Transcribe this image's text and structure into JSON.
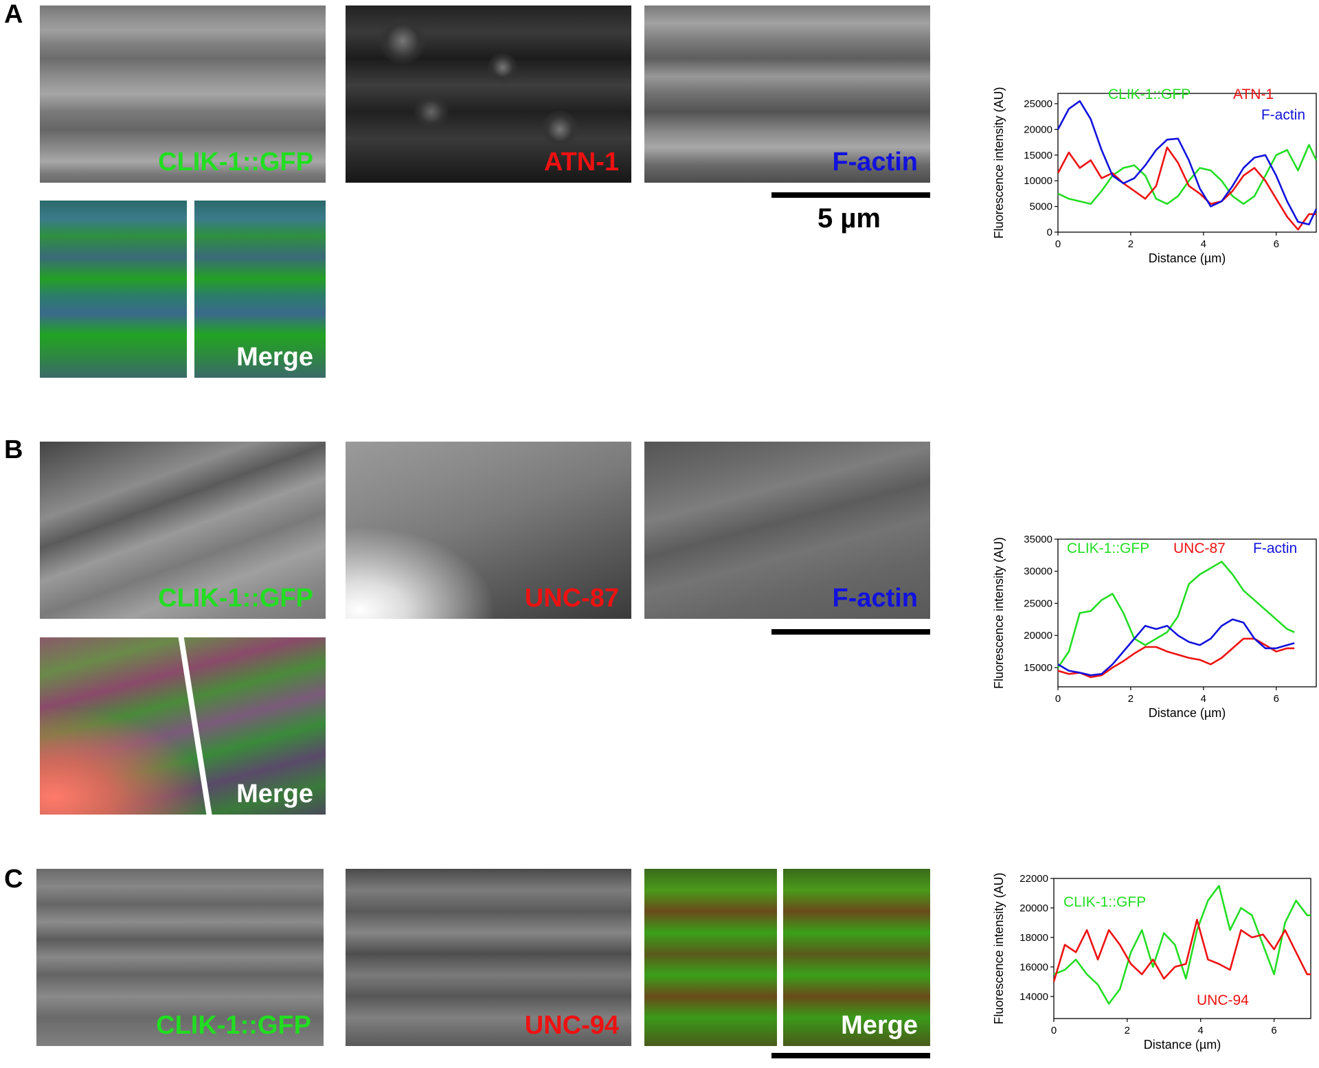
{
  "panels": [
    {
      "letter": "A",
      "tiles": [
        {
          "label": "CLIK-1::GFP",
          "color": "#22dd22"
        },
        {
          "label": "ATN-1",
          "color": "#ee1111"
        },
        {
          "label": "F-actin",
          "color": "#1111dd"
        }
      ],
      "merge_label": "Merge",
      "scale_label": "5 µm"
    },
    {
      "letter": "B",
      "tiles": [
        {
          "label": "CLIK-1::GFP",
          "color": "#22dd22"
        },
        {
          "label": "UNC-87",
          "color": "#ee1111"
        },
        {
          "label": "F-actin",
          "color": "#1111dd"
        }
      ],
      "merge_label": "Merge"
    },
    {
      "letter": "C",
      "tiles": [
        {
          "label": "CLIK-1::GFP",
          "color": "#22dd22"
        },
        {
          "label": "UNC-94",
          "color": "#ee1111"
        }
      ],
      "merge_label": "Merge"
    }
  ],
  "chart_data": [
    {
      "type": "line",
      "xlabel": "Distance (µm)",
      "ylabel": "Fluorescence intensity (AU)",
      "xlim": [
        0,
        7.1
      ],
      "ylim": [
        0,
        27000
      ],
      "xticks": [
        0,
        2,
        4,
        6
      ],
      "yticks": [
        0,
        5000,
        10000,
        15000,
        20000,
        25000
      ],
      "grid": false,
      "series": [
        {
          "name": "CLIK-1::GFP",
          "color": "#22dd22",
          "x": [
            0,
            0.3,
            0.6,
            0.9,
            1.2,
            1.5,
            1.8,
            2.1,
            2.4,
            2.7,
            3.0,
            3.3,
            3.6,
            3.9,
            4.2,
            4.5,
            4.8,
            5.1,
            5.4,
            5.7,
            6.0,
            6.3,
            6.6,
            6.9,
            7.1
          ],
          "y": [
            7500,
            6500,
            6000,
            5500,
            8000,
            11000,
            12500,
            13000,
            11000,
            6500,
            5500,
            7000,
            10000,
            12500,
            12000,
            10000,
            7000,
            5500,
            7000,
            11000,
            15000,
            16000,
            12000,
            17000,
            14000
          ]
        },
        {
          "name": "ATN-1",
          "color": "#ee1111",
          "x": [
            0,
            0.3,
            0.6,
            0.9,
            1.2,
            1.5,
            1.8,
            2.1,
            2.4,
            2.7,
            3.0,
            3.3,
            3.6,
            3.9,
            4.2,
            4.5,
            4.8,
            5.1,
            5.4,
            5.7,
            6.0,
            6.3,
            6.6,
            6.9,
            7.1
          ],
          "y": [
            11500,
            15500,
            12500,
            14000,
            10500,
            11500,
            9500,
            8000,
            6500,
            9000,
            16500,
            13500,
            9000,
            7500,
            5500,
            6000,
            8000,
            11000,
            12500,
            10000,
            6500,
            3000,
            500,
            3500,
            3500
          ]
        },
        {
          "name": "F-actin",
          "color": "#1111dd",
          "x": [
            0,
            0.3,
            0.6,
            0.9,
            1.2,
            1.5,
            1.8,
            2.1,
            2.4,
            2.7,
            3.0,
            3.3,
            3.6,
            3.9,
            4.2,
            4.5,
            4.8,
            5.1,
            5.4,
            5.7,
            6.0,
            6.3,
            6.6,
            6.9,
            7.1
          ],
          "y": [
            20000,
            24000,
            25500,
            22000,
            16000,
            11000,
            9500,
            10500,
            13000,
            16000,
            18000,
            18200,
            14000,
            8500,
            5000,
            6000,
            9000,
            12500,
            14500,
            15000,
            11000,
            6000,
            2000,
            1500,
            4500
          ]
        }
      ]
    },
    {
      "type": "line",
      "xlabel": "Distance (µm)",
      "ylabel": "Fluorescence intensity (AU)",
      "xlim": [
        0,
        7.1
      ],
      "ylim": [
        12000,
        35000
      ],
      "xticks": [
        0,
        2,
        4,
        6
      ],
      "yticks": [
        15000,
        20000,
        25000,
        30000,
        35000
      ],
      "grid": false,
      "series": [
        {
          "name": "CLIK-1::GFP",
          "color": "#22dd22",
          "x": [
            0,
            0.3,
            0.6,
            0.9,
            1.2,
            1.5,
            1.8,
            2.1,
            2.4,
            2.7,
            3.0,
            3.3,
            3.6,
            3.9,
            4.2,
            4.5,
            4.8,
            5.1,
            5.4,
            5.7,
            6.0,
            6.3,
            6.5
          ],
          "y": [
            15000,
            17500,
            23500,
            23800,
            25500,
            26500,
            23500,
            19500,
            18500,
            19500,
            20500,
            23000,
            28000,
            29500,
            30500,
            31500,
            29500,
            27000,
            25500,
            24000,
            22500,
            21000,
            20500
          ]
        },
        {
          "name": "UNC-87",
          "color": "#ee1111",
          "x": [
            0,
            0.3,
            0.6,
            0.9,
            1.2,
            1.5,
            1.8,
            2.1,
            2.4,
            2.7,
            3.0,
            3.3,
            3.6,
            3.9,
            4.2,
            4.5,
            4.8,
            5.1,
            5.4,
            5.7,
            6.0,
            6.3,
            6.5
          ],
          "y": [
            14500,
            14000,
            14200,
            13500,
            13800,
            15000,
            16000,
            17200,
            18200,
            18200,
            17500,
            17000,
            16500,
            16200,
            15500,
            16500,
            18000,
            19500,
            19500,
            18500,
            17500,
            18000,
            18000
          ]
        },
        {
          "name": "F-actin",
          "color": "#1111dd",
          "x": [
            0,
            0.3,
            0.6,
            0.9,
            1.2,
            1.5,
            1.8,
            2.1,
            2.4,
            2.7,
            3.0,
            3.3,
            3.6,
            3.9,
            4.2,
            4.5,
            4.8,
            5.1,
            5.4,
            5.7,
            6.0,
            6.3,
            6.5
          ],
          "y": [
            15500,
            14500,
            14200,
            13800,
            14000,
            15500,
            17500,
            19500,
            21500,
            21000,
            21500,
            20000,
            19000,
            18500,
            19500,
            21500,
            22500,
            22000,
            19500,
            18000,
            18000,
            18500,
            18800
          ]
        }
      ]
    },
    {
      "type": "line",
      "xlabel": "Distance (µm)",
      "ylabel": "Fluorescence intensity (AU)",
      "xlim": [
        0,
        7.0
      ],
      "ylim": [
        12500,
        22000
      ],
      "xticks": [
        0,
        2,
        4,
        6
      ],
      "yticks": [
        14000,
        16000,
        18000,
        20000,
        22000
      ],
      "grid": false,
      "series": [
        {
          "name": "CLIK-1::GFP",
          "color": "#22dd22",
          "x": [
            0,
            0.3,
            0.6,
            0.9,
            1.2,
            1.5,
            1.8,
            2.1,
            2.4,
            2.7,
            3.0,
            3.3,
            3.6,
            3.9,
            4.2,
            4.5,
            4.8,
            5.1,
            5.4,
            5.7,
            6.0,
            6.3,
            6.6,
            6.9,
            7.0
          ],
          "y": [
            15500,
            15800,
            16500,
            15500,
            14800,
            13500,
            14500,
            17000,
            18500,
            16000,
            18300,
            17500,
            15200,
            18500,
            20500,
            21500,
            18500,
            20000,
            19500,
            17500,
            15500,
            19000,
            20500,
            19500,
            19500
          ]
        },
        {
          "name": "UNC-94",
          "color": "#ee1111",
          "x": [
            0,
            0.3,
            0.6,
            0.9,
            1.2,
            1.5,
            1.8,
            2.1,
            2.4,
            2.7,
            3.0,
            3.3,
            3.6,
            3.9,
            4.2,
            4.5,
            4.8,
            5.1,
            5.4,
            5.7,
            6.0,
            6.3,
            6.6,
            6.9,
            7.0
          ],
          "y": [
            15000,
            17500,
            17000,
            18500,
            16500,
            18500,
            17500,
            16200,
            15500,
            16500,
            15200,
            16000,
            16200,
            19200,
            16500,
            16200,
            15800,
            18500,
            18000,
            18200,
            17200,
            18500,
            17000,
            15500,
            15500
          ]
        }
      ]
    }
  ]
}
